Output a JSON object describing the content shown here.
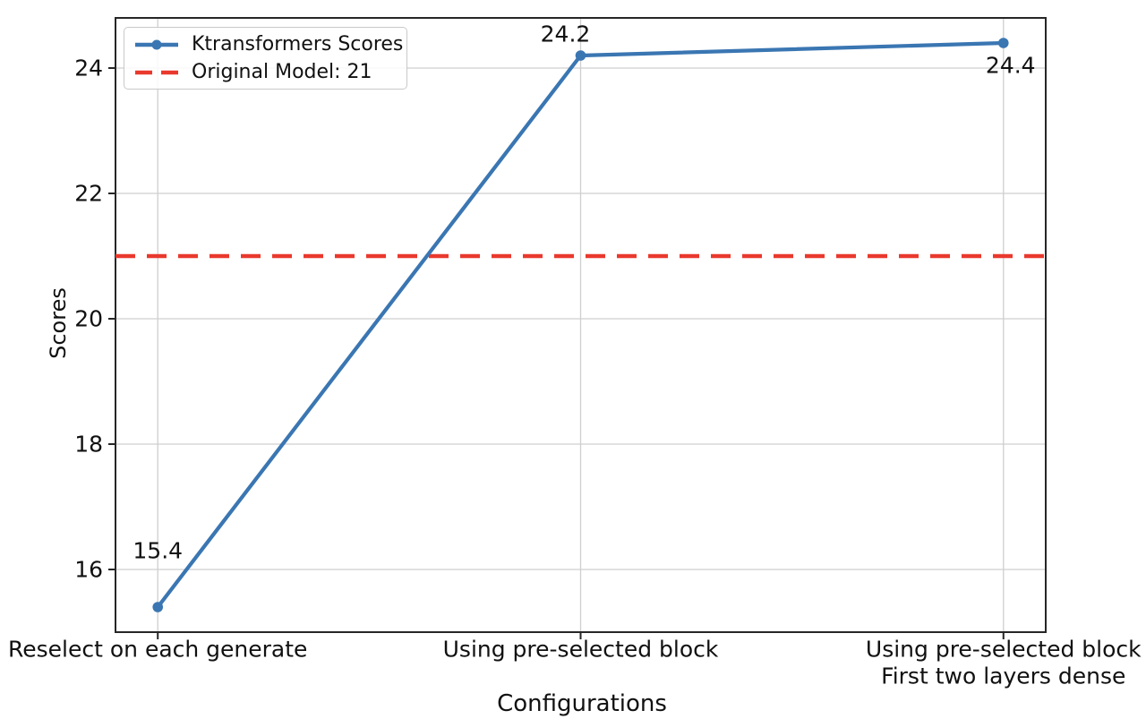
{
  "chart_data": {
    "type": "line",
    "title": "",
    "xlabel": "Configurations",
    "ylabel": "Scores",
    "categories": [
      [
        "Reselect on each generate"
      ],
      [
        "Using pre-selected block"
      ],
      [
        "Using pre-selected block",
        "First two layers dense"
      ]
    ],
    "series": [
      {
        "name": "Ktransformers Scores",
        "values": [
          15.4,
          24.2,
          24.4
        ],
        "color": "#3a76b2",
        "marker": "circle",
        "line_style": "solid"
      }
    ],
    "reference_line": {
      "name": "Original Model: 21",
      "value": 21,
      "color": "#e9392d",
      "line_style": "dashed"
    },
    "data_labels": [
      "15.4",
      "24.2",
      "24.4"
    ],
    "yticks": [
      16,
      18,
      20,
      22,
      24
    ],
    "ylim": [
      15.0,
      24.8
    ],
    "grid": true,
    "legend": {
      "position": "upper-left",
      "entries": [
        "Ktransformers Scores",
        "Original Model: 21"
      ]
    }
  },
  "colors": {
    "grid": "#cfcfcf",
    "spine": "#262626",
    "text": "#111111",
    "background": "#ffffff"
  }
}
